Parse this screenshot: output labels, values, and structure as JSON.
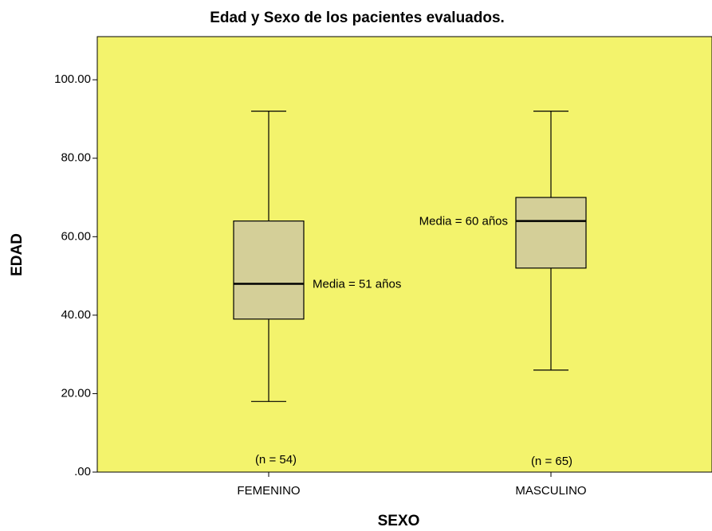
{
  "chart_data": {
    "type": "box",
    "title": "Edad y Sexo de los pacientes evaluados.",
    "xlabel": "SEXO",
    "ylabel": "EDAD",
    "categories": [
      "FEMENINO",
      "MASCULINO"
    ],
    "boxes": [
      {
        "min": 18,
        "q1": 39,
        "median": 48,
        "q3": 64,
        "max": 92
      },
      {
        "min": 26,
        "q1": 52,
        "median": 64,
        "q3": 70,
        "max": 92
      }
    ],
    "mean_labels": [
      "Media = 51 años",
      "Media = 60 años"
    ],
    "n_labels": [
      "(n = 54)",
      "(n = 65)"
    ],
    "ylim": [
      0,
      111
    ],
    "yticks": [
      {
        "value": 0,
        "label": ".00"
      },
      {
        "value": 20,
        "label": "20.00"
      },
      {
        "value": 40,
        "label": "40.00"
      },
      {
        "value": 60,
        "label": "60.00"
      },
      {
        "value": 80,
        "label": "80.00"
      },
      {
        "value": 100,
        "label": "100.00"
      }
    ],
    "background_color": "#f3f36c",
    "box_color": "#d4cf98"
  }
}
